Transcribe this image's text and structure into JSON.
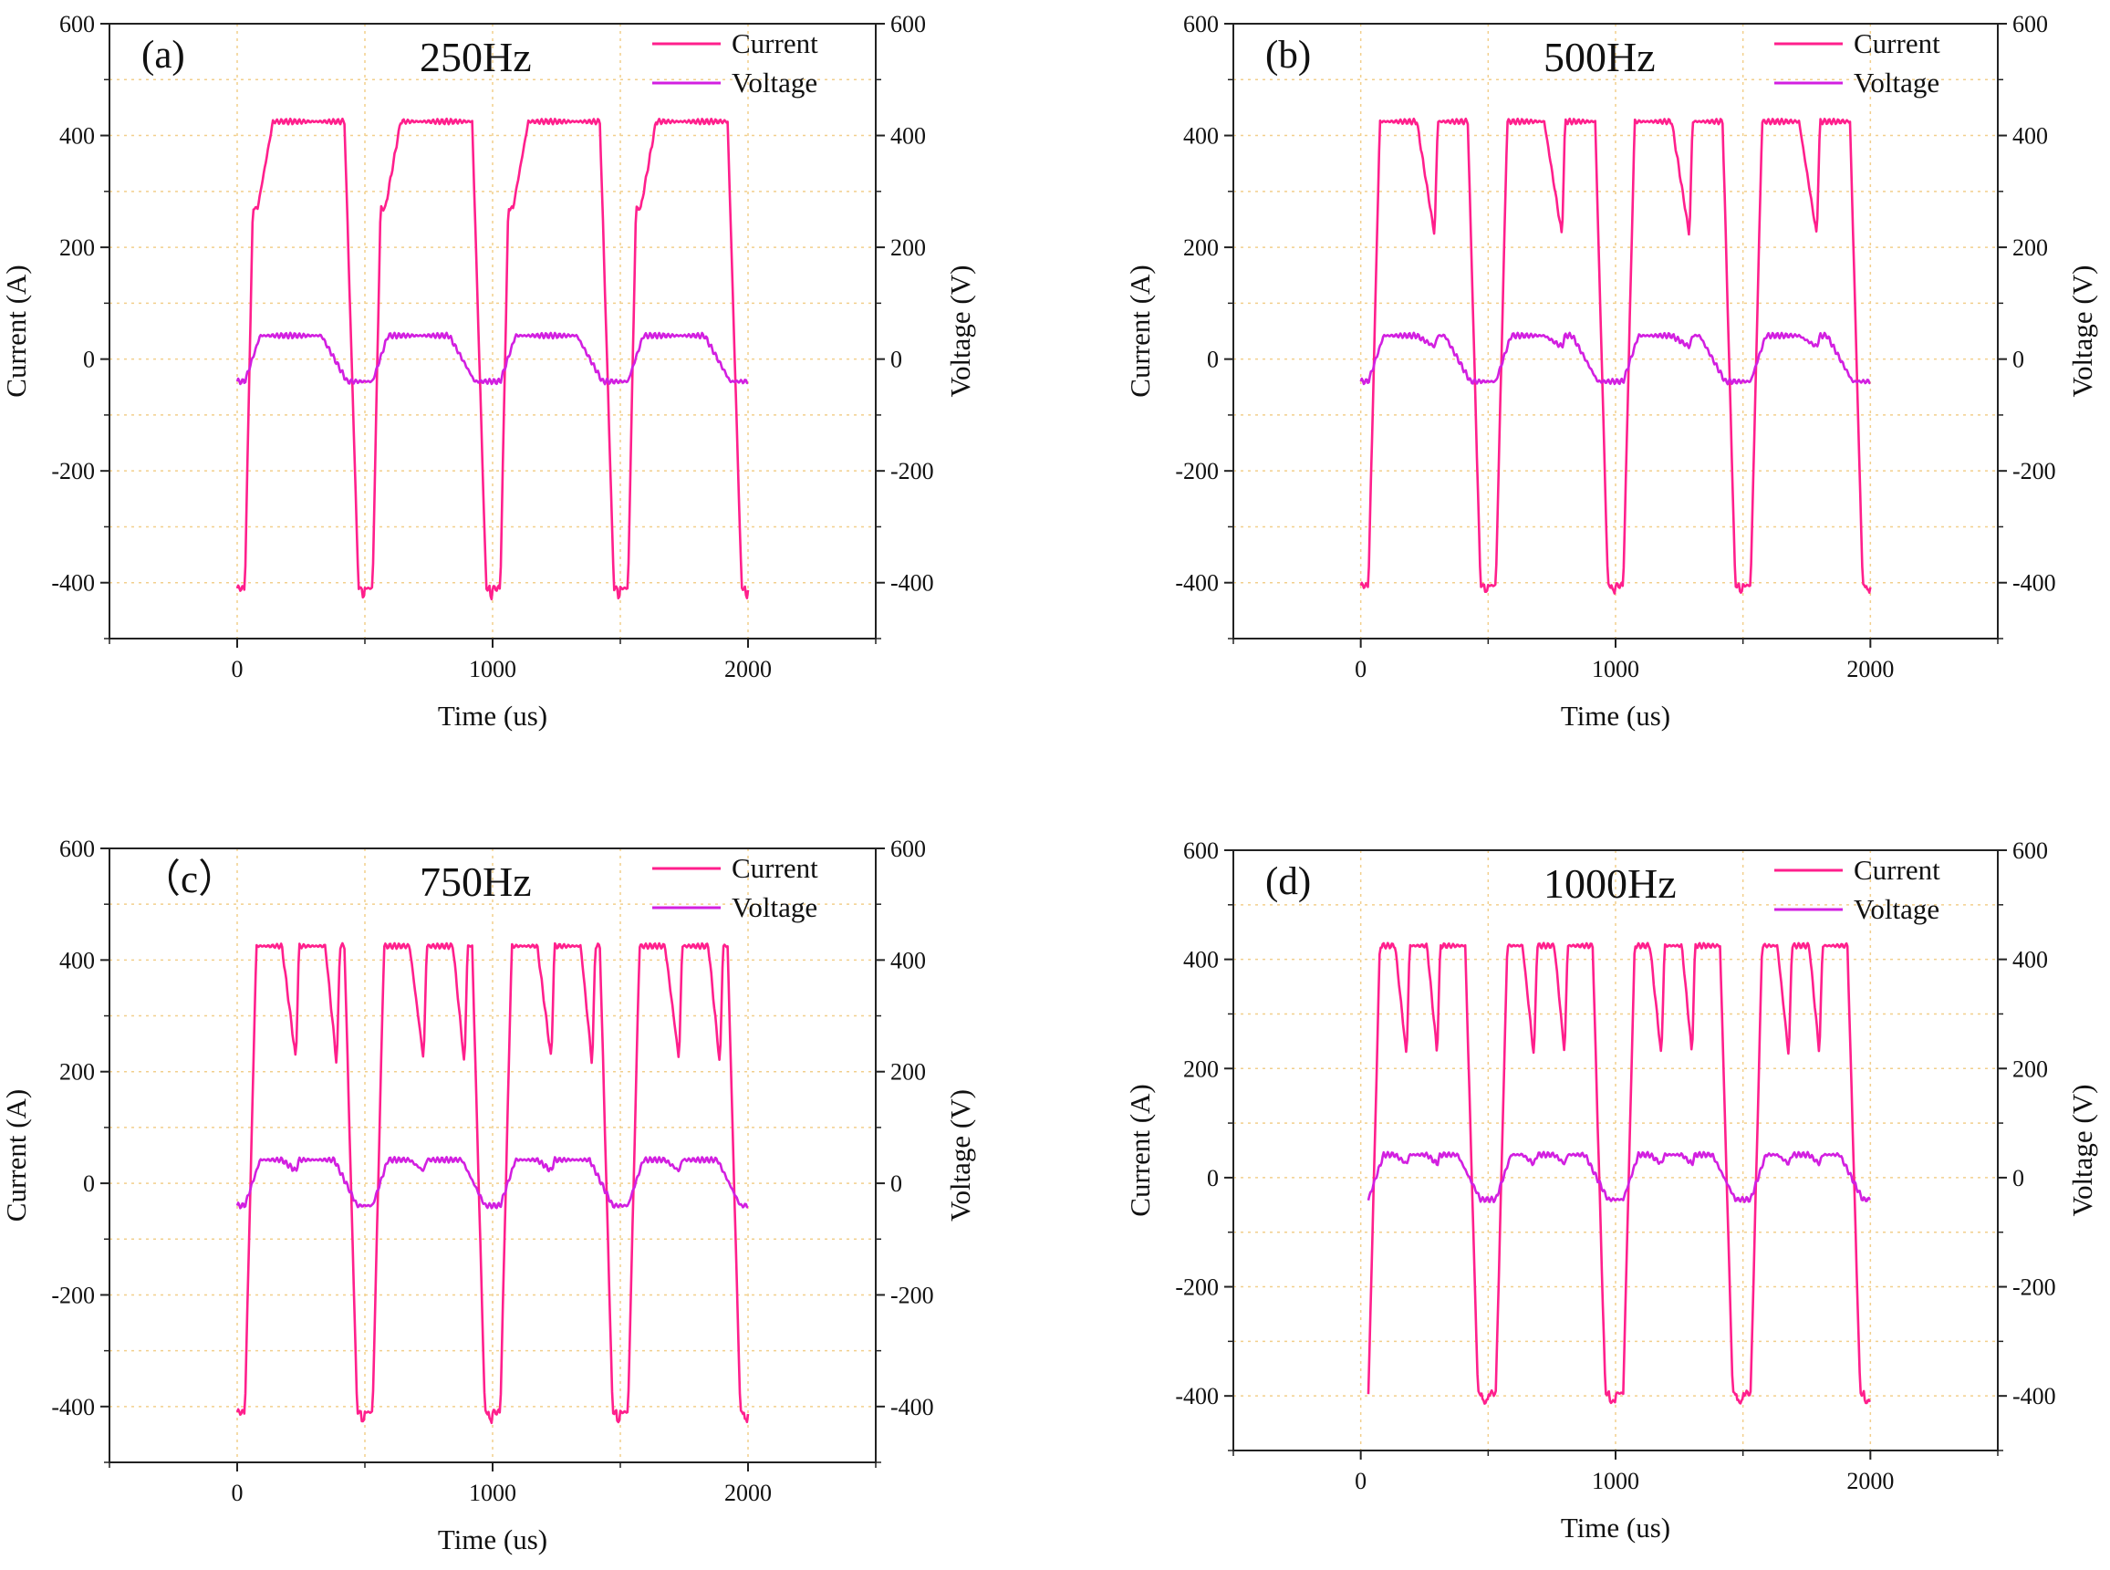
{
  "figure": {
    "colors": {
      "current": "#ff1f8c",
      "voltage": "#d21fe0",
      "grid": "#f2cf8c",
      "axis": "#222222"
    }
  },
  "chart_data": [
    {
      "type": "line",
      "panel": "(a)",
      "title": "250Hz",
      "xlabel": "Time (us)",
      "ylabel": "Current (A)",
      "y2label": "Voltage (V)",
      "xlim": [
        -500,
        2500
      ],
      "ylim": [
        -500,
        600
      ],
      "y2lim": [
        -500,
        600
      ],
      "xticks": [
        0,
        1000,
        2000
      ],
      "yticks": [
        -400,
        -200,
        0,
        200,
        400,
        600
      ],
      "grid": true,
      "legend_position": "top-right",
      "series": [
        {
          "name": "Current",
          "axis": "left",
          "shape": {
            "start": 0,
            "end": 2000,
            "period": 500,
            "high": 425,
            "low": -410,
            "riseDelay": 30,
            "rise": 50,
            "fallStart": 420,
            "fall": 55,
            "step": 270,
            "stepEnd": 110,
            "lowTail": -425,
            "dips": []
          }
        },
        {
          "name": "Voltage",
          "axis": "right",
          "shape": {
            "start": 0,
            "end": 2000,
            "period": 500,
            "high": 42,
            "low": -40,
            "riseDelay": 30,
            "rise": 60,
            "fallStart": 330,
            "fall": 100,
            "dips": []
          }
        }
      ]
    },
    {
      "type": "line",
      "panel": "(b)",
      "title": "500Hz",
      "xlabel": "Time (us)",
      "ylabel": "Current (A)",
      "y2label": "Voltage (V)",
      "xlim": [
        -500,
        2500
      ],
      "ylim": [
        -500,
        600
      ],
      "y2lim": [
        -500,
        600
      ],
      "xticks": [
        0,
        1000,
        2000
      ],
      "yticks": [
        -400,
        -200,
        0,
        200,
        400,
        600
      ],
      "grid": true,
      "legend_position": "top-right",
      "series": [
        {
          "name": "Current",
          "axis": "left",
          "shape": {
            "start": 0,
            "end": 2000,
            "period": 500,
            "high": 425,
            "low": -405,
            "riseDelay": 30,
            "rise": 45,
            "fallStart": 420,
            "fall": 50,
            "lowTail": -415,
            "dips": [
              {
                "t": 290,
                "depth": 220,
                "w": 70
              }
            ]
          }
        },
        {
          "name": "Voltage",
          "axis": "right",
          "shape": {
            "start": 0,
            "end": 2000,
            "period": 500,
            "high": 42,
            "low": -40,
            "riseDelay": 30,
            "rise": 60,
            "fallStart": 330,
            "fall": 100,
            "dips": [
              {
                "t": 290,
                "depth": 22,
                "w": 70
              }
            ]
          }
        }
      ]
    },
    {
      "type": "line",
      "panel": "（c）",
      "title": "750Hz",
      "xlabel": "Time (us)",
      "ylabel": "Current (A)",
      "y2label": "Voltage (V)",
      "xlim": [
        -500,
        2500
      ],
      "ylim": [
        -500,
        600
      ],
      "y2lim": [
        -500,
        600
      ],
      "xticks": [
        0,
        1000,
        2000
      ],
      "yticks": [
        -400,
        -200,
        0,
        200,
        400,
        600
      ],
      "grid": true,
      "legend_position": "top-right",
      "series": [
        {
          "name": "Current",
          "axis": "left",
          "shape": {
            "start": 0,
            "end": 2000,
            "period": 500,
            "high": 425,
            "low": -410,
            "riseDelay": 30,
            "rise": 45,
            "fallStart": 420,
            "fall": 50,
            "lowTail": -425,
            "dips": [
              {
                "t": 230,
                "depth": 220,
                "w": 55
              },
              {
                "t": 390,
                "depth": 210,
                "w": 45
              }
            ]
          }
        },
        {
          "name": "Voltage",
          "axis": "right",
          "shape": {
            "start": 0,
            "end": 2000,
            "period": 500,
            "high": 42,
            "low": -40,
            "riseDelay": 30,
            "rise": 60,
            "fallStart": 380,
            "fall": 90,
            "dips": [
              {
                "t": 230,
                "depth": 22,
                "w": 55
              }
            ]
          }
        }
      ]
    },
    {
      "type": "line",
      "panel": "(d)",
      "title": "1000Hz",
      "xlabel": "Time (us)",
      "ylabel": "Current (A)",
      "y2label": "Voltage (V)",
      "xlim": [
        -500,
        2500
      ],
      "ylim": [
        -500,
        600
      ],
      "y2lim": [
        -500,
        600
      ],
      "xticks": [
        0,
        1000,
        2000
      ],
      "yticks": [
        -400,
        -200,
        0,
        200,
        400,
        600
      ],
      "grid": true,
      "legend_position": "top-right",
      "series": [
        {
          "name": "Current",
          "axis": "left",
          "shape": {
            "start": 30,
            "end": 2000,
            "period": 500,
            "high": 425,
            "low": -395,
            "riseDelay": 30,
            "rise": 45,
            "fallStart": 410,
            "fall": 50,
            "lowTail": -410,
            "dips": [
              {
                "t": 180,
                "depth": 220,
                "w": 45
              },
              {
                "t": 300,
                "depth": 225,
                "w": 40
              }
            ]
          }
        },
        {
          "name": "Voltage",
          "axis": "right",
          "shape": {
            "start": 30,
            "end": 2000,
            "period": 500,
            "high": 42,
            "low": -40,
            "riseDelay": 30,
            "rise": 60,
            "fallStart": 380,
            "fall": 90,
            "dips": [
              {
                "t": 180,
                "depth": 25,
                "w": 45
              },
              {
                "t": 300,
                "depth": 25,
                "w": 40
              }
            ]
          }
        }
      ]
    }
  ]
}
